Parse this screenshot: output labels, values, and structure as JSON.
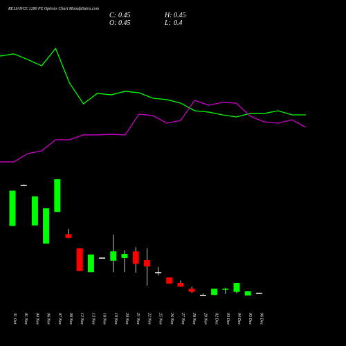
{
  "chart_data": {
    "type": "candlestick",
    "title": "RELIANCE 1280 PE Options Chart MunafaSutra.com",
    "summary": [
      {
        "key": "C:",
        "value": 0.45
      },
      {
        "key": "H:",
        "value": 0.45
      },
      {
        "key": "O:",
        "value": 0.45
      },
      {
        "key": "L:",
        "value": 0.4
      }
    ],
    "categories": [
      "31 Oct",
      "01 Nov",
      "04 Nov",
      "06 Nov",
      "07 Nov",
      "08 Nov",
      "12 Nov",
      "13 Nov",
      "18 Nov",
      "19 Nov",
      "20 Nov",
      "21 Nov",
      "22 Nov",
      "25 Nov",
      "26 Nov",
      "27 Nov",
      "28 Nov",
      "29 Nov",
      "02 Dec",
      "03 Dec",
      "04 Dec",
      "05 Dec",
      "06 Dec"
    ],
    "open": [
      6.9,
      10.85,
      6.95,
      5.2,
      8.25,
      6.1,
      4.75,
      2.45,
      3.85,
      3.55,
      3.8,
      4.45,
      3.6,
      2.45,
      1.95,
      1.4,
      0.85,
      0.25,
      0.25,
      0.8,
      0.55,
      0.2,
      0.45
    ],
    "high": [
      10.3,
      10.9,
      9.75,
      8.6,
      11.4,
      6.6,
      4.75,
      4.15,
      3.85,
      6.05,
      4.55,
      4.85,
      4.75,
      2.95,
      1.95,
      1.65,
      1.05,
      0.4,
      0.85,
      0.95,
      1.4,
      0.6,
      0.45
    ],
    "low": [
      6.9,
      10.8,
      6.95,
      5.2,
      8.25,
      5.7,
      2.55,
      2.45,
      3.85,
      2.45,
      2.45,
      2.4,
      1.15,
      2.15,
      1.35,
      1.05,
      0.45,
      0.2,
      0.25,
      0.35,
      0.4,
      0.2,
      0.4
    ],
    "close": [
      10.3,
      10.85,
      9.75,
      8.6,
      11.4,
      5.75,
      2.55,
      4.15,
      3.85,
      4.45,
      4.2,
      3.25,
      3.0,
      2.45,
      1.35,
      1.05,
      0.55,
      0.25,
      0.85,
      0.85,
      1.4,
      0.6,
      0.45
    ],
    "up_color": "#00ff00",
    "down_color": "#ff0000",
    "flat_color": "#ffffff",
    "ylim": [
      0,
      12
    ],
    "overlay": {
      "ylim": [
        0,
        14
      ],
      "series": [
        {
          "color": "#00ff00",
          "values": [
            11.27,
            11.47,
            10.93,
            10.33,
            12.0,
            8.67,
            6.67,
            7.67,
            7.53,
            7.87,
            7.73,
            7.2,
            7.07,
            6.73,
            6.0,
            5.87,
            5.6,
            5.4,
            5.73,
            5.73,
            6.0,
            5.6,
            5.6
          ]
        },
        {
          "color": "#cc00cc",
          "values": [
            1.07,
            1.07,
            1.87,
            2.13,
            3.2,
            3.2,
            3.67,
            3.67,
            3.73,
            3.67,
            5.67,
            5.53,
            4.8,
            5.07,
            7.0,
            6.53,
            6.8,
            6.73,
            5.47,
            4.93,
            4.8,
            5.13,
            4.4
          ]
        }
      ]
    }
  }
}
